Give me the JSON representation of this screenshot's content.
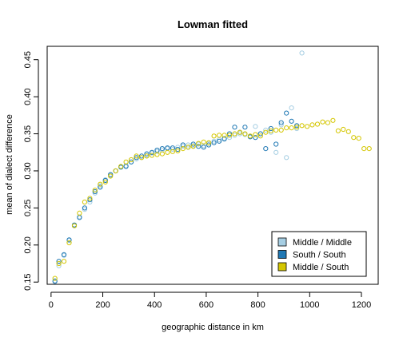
{
  "chart_data": {
    "type": "scatter",
    "title": "Lowman fitted",
    "xlabel": "geographic distance in km",
    "ylabel": "mean of dialect difference",
    "xlim": [
      -15,
      1265
    ],
    "ylim": [
      0.147,
      0.468
    ],
    "xticks": [
      0,
      200,
      400,
      600,
      800,
      1000,
      1200
    ],
    "yticks": [
      0.15,
      0.2,
      0.25,
      0.3,
      0.35,
      0.4,
      0.45
    ],
    "grid": false,
    "legend_position": "bottom-right",
    "series": [
      {
        "name": "Middle / Middle",
        "color": "#a6cee3",
        "marker": "open-circle",
        "x": [
          15,
          30,
          50,
          70,
          90,
          110,
          130,
          150,
          170,
          190,
          210,
          230,
          250,
          270,
          290,
          310,
          330,
          350,
          370,
          390,
          410,
          430,
          450,
          470,
          490,
          510,
          530,
          550,
          570,
          590,
          610,
          630,
          650,
          670,
          690,
          710,
          730,
          750,
          770,
          790,
          810,
          830,
          850,
          870,
          890,
          910,
          930,
          950,
          970
        ],
        "y": [
          0.152,
          0.172,
          0.186,
          0.206,
          0.226,
          0.238,
          0.248,
          0.258,
          0.27,
          0.28,
          0.288,
          0.294,
          0.3,
          0.305,
          0.307,
          0.312,
          0.316,
          0.318,
          0.321,
          0.324,
          0.326,
          0.328,
          0.33,
          0.329,
          0.332,
          0.333,
          0.335,
          0.334,
          0.336,
          0.334,
          0.337,
          0.34,
          0.342,
          0.344,
          0.345,
          0.348,
          0.35,
          0.349,
          0.346,
          0.36,
          0.35,
          0.355,
          0.352,
          0.325,
          0.362,
          0.318,
          0.385,
          0.357,
          0.459
        ]
      },
      {
        "name": "South / South",
        "color": "#1f78b4",
        "marker": "open-circle",
        "x": [
          15,
          30,
          50,
          70,
          90,
          110,
          130,
          150,
          170,
          190,
          210,
          230,
          250,
          270,
          290,
          310,
          330,
          350,
          370,
          390,
          410,
          430,
          450,
          470,
          490,
          510,
          530,
          550,
          570,
          590,
          610,
          630,
          650,
          670,
          690,
          710,
          730,
          750,
          770,
          790,
          810,
          830,
          850,
          870,
          890,
          910,
          930,
          950
        ],
        "y": [
          0.151,
          0.178,
          0.187,
          0.207,
          0.227,
          0.237,
          0.25,
          0.261,
          0.272,
          0.278,
          0.287,
          0.295,
          0.3,
          0.305,
          0.306,
          0.312,
          0.318,
          0.32,
          0.323,
          0.325,
          0.328,
          0.33,
          0.331,
          0.331,
          0.329,
          0.335,
          0.332,
          0.336,
          0.333,
          0.332,
          0.335,
          0.338,
          0.34,
          0.343,
          0.35,
          0.359,
          0.352,
          0.359,
          0.346,
          0.345,
          0.35,
          0.33,
          0.357,
          0.336,
          0.365,
          0.378,
          0.367,
          0.361
        ]
      },
      {
        "name": "Middle / South",
        "color": "#d4c600",
        "marker": "open-circle",
        "x": [
          15,
          30,
          50,
          70,
          90,
          110,
          130,
          150,
          170,
          190,
          210,
          230,
          250,
          270,
          290,
          310,
          330,
          350,
          370,
          390,
          410,
          430,
          450,
          470,
          490,
          510,
          530,
          550,
          570,
          590,
          610,
          630,
          650,
          670,
          690,
          710,
          730,
          750,
          770,
          790,
          810,
          830,
          850,
          870,
          890,
          910,
          930,
          950,
          970,
          990,
          1010,
          1030,
          1050,
          1070,
          1090,
          1110,
          1130,
          1150,
          1170,
          1190,
          1210,
          1230
        ],
        "y": [
          0.155,
          0.175,
          0.178,
          0.203,
          0.226,
          0.243,
          0.258,
          0.263,
          0.274,
          0.282,
          0.285,
          0.293,
          0.3,
          0.306,
          0.312,
          0.315,
          0.32,
          0.318,
          0.32,
          0.321,
          0.322,
          0.323,
          0.325,
          0.326,
          0.327,
          0.33,
          0.332,
          0.333,
          0.337,
          0.339,
          0.338,
          0.347,
          0.348,
          0.348,
          0.348,
          0.35,
          0.352,
          0.35,
          0.347,
          0.349,
          0.347,
          0.352,
          0.354,
          0.355,
          0.355,
          0.358,
          0.358,
          0.359,
          0.361,
          0.36,
          0.362,
          0.363,
          0.366,
          0.365,
          0.368,
          0.354,
          0.356,
          0.353,
          0.345,
          0.344,
          0.33,
          0.33
        ]
      }
    ]
  }
}
